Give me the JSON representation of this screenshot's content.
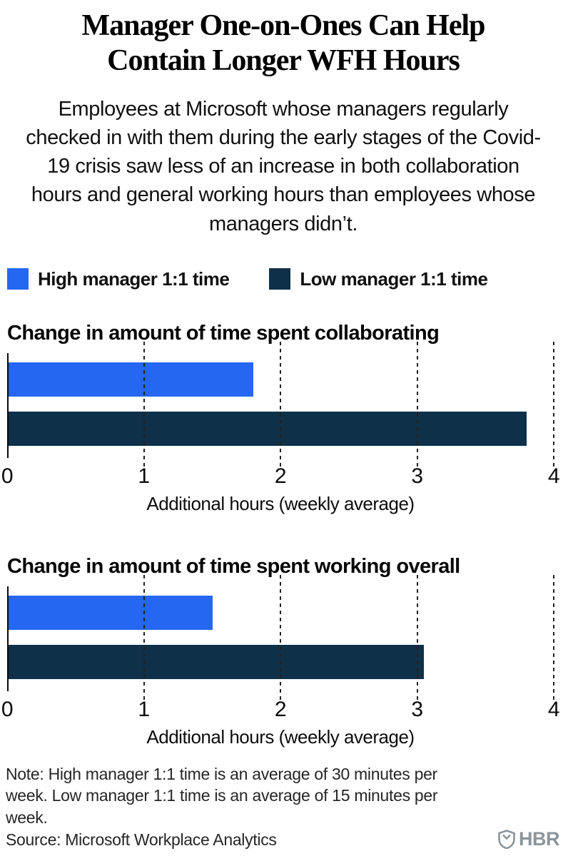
{
  "header": {
    "title": "Manager One-on-Ones Can Help Contain Longer WFH Hours",
    "subtitle": "Employees at Microsoft whose managers regularly checked in with them during the early stages of the Covid-19 crisis saw less of an increase in both collaboration hours and general working hours than employees whose managers didn’t."
  },
  "legend": {
    "items": [
      {
        "label": "High manager 1:1 time",
        "color": "#2567f0"
      },
      {
        "label": "Low manager 1:1 time",
        "color": "#0e3049"
      }
    ]
  },
  "chart_data": [
    {
      "type": "bar",
      "orientation": "horizontal",
      "title": "Change in amount of time spent collaborating",
      "xlabel": "Additional hours (weekly average)",
      "xlim": [
        0,
        4
      ],
      "ticks": [
        0,
        1,
        2,
        3,
        4
      ],
      "grid": "dashed-vertical",
      "legend_position": "top",
      "values": [
        {
          "label": "High manager 1:1 time",
          "value": 1.8,
          "color": "#2567f0"
        },
        {
          "label": "Low manager 1:1 time",
          "value": 3.8,
          "color": "#0e3049"
        }
      ]
    },
    {
      "type": "bar",
      "orientation": "horizontal",
      "title": "Change in amount of time spent working overall",
      "xlabel": "Additional hours (weekly average)",
      "xlim": [
        0,
        4
      ],
      "ticks": [
        0,
        1,
        2,
        3,
        4
      ],
      "grid": "dashed-vertical",
      "legend_position": "top",
      "values": [
        {
          "label": "High manager 1:1 time",
          "value": 1.5,
          "color": "#2567f0"
        },
        {
          "label": "Low manager 1:1 time",
          "value": 3.05,
          "color": "#0e3049"
        }
      ]
    }
  ],
  "footer": {
    "note": "Note: High manager 1:1 time is an average of 30 minutes per week. Low manager 1:1 time is an average of 15 minutes per week.",
    "source": "Source: Microsoft Workplace Analytics",
    "logo": {
      "text": "HBR",
      "icon": "hbr-shield-icon",
      "color": "#8c959c"
    }
  }
}
